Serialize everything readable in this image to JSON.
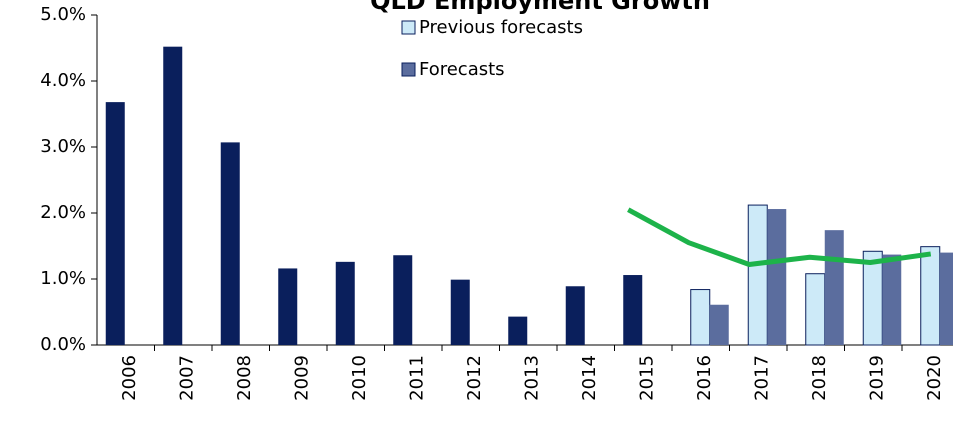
{
  "chart_data": {
    "type": "bar",
    "title": "QLD Employment Growth",
    "categories": [
      "2006",
      "2007",
      "2008",
      "2009",
      "2010",
      "2011",
      "2012",
      "2013",
      "2014",
      "2015",
      "2016",
      "2017",
      "2018",
      "2019",
      "2020"
    ],
    "series": [
      {
        "color": "#0a1f5c",
        "values": [
          3.68,
          4.52,
          3.07,
          1.16,
          1.26,
          1.36,
          0.99,
          0.43,
          0.89,
          1.06,
          null,
          null,
          null,
          null,
          null
        ]
      },
      {
        "name": "Previous forecasts",
        "color": "#cdeaf8",
        "values": [
          null,
          null,
          null,
          null,
          null,
          null,
          null,
          null,
          null,
          null,
          0.84,
          2.12,
          1.08,
          1.42,
          1.49
        ]
      },
      {
        "name": "Forecasts",
        "color": "#5b6d9e",
        "values": [
          null,
          null,
          null,
          null,
          null,
          null,
          null,
          null,
          null,
          null,
          0.61,
          2.06,
          1.74,
          1.37,
          1.4
        ]
      },
      {
        "type": "line",
        "color": "#1db34a",
        "values": [
          null,
          null,
          null,
          null,
          null,
          null,
          null,
          null,
          null,
          2.05,
          1.55,
          1.22,
          1.33,
          1.25,
          1.38
        ]
      }
    ],
    "ylim": [
      0,
      5
    ],
    "yticks": [
      {
        "value": 0,
        "label": "0.0%"
      },
      {
        "value": 1,
        "label": "1.0%"
      },
      {
        "value": 2,
        "label": "2.0%"
      },
      {
        "value": 3,
        "label": "3.0%"
      },
      {
        "value": 4,
        "label": "4.0%"
      },
      {
        "value": 5,
        "label": "5.0%"
      }
    ],
    "grid": false
  }
}
